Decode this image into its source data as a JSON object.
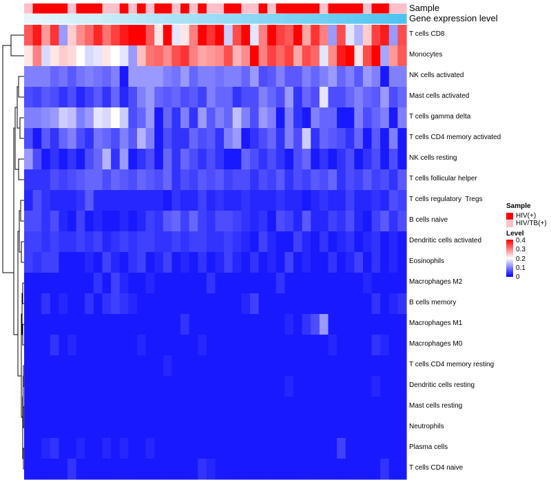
{
  "chart_data": {
    "type": "heatmap",
    "annotation_rows": [
      {
        "name": "Sample",
        "label": "Sample"
      },
      {
        "name": "Gene expression level",
        "label": "Gene expression level"
      }
    ],
    "sample_groups": [
      "L",
      "H",
      "H",
      "H",
      "H",
      "L",
      "H",
      "H",
      "H",
      "L",
      "L",
      "H",
      "L",
      "H",
      "L",
      "H",
      "H",
      "L",
      "H",
      "L",
      "H",
      "L",
      "L",
      "H",
      "H",
      "L",
      "L",
      "H",
      "L",
      "H",
      "H",
      "H",
      "H",
      "H",
      "L",
      "H",
      "H",
      "H",
      "H",
      "L",
      "H",
      "H",
      "L",
      "L"
    ],
    "expression_annotation": {
      "from_color": "#e8f6fb",
      "to_color": "#4fc3f0"
    },
    "rows": [
      "T cells CD8",
      "Monocytes",
      "NK cells activated",
      "Mast cells activated",
      "T cells gamma delta",
      "T cells CD4 memory activated",
      "NK cells resting",
      "T cells follicular helper",
      "T cells regulatory  Tregs",
      "B cells naive",
      "Dendritic cells activated",
      "Eosinophils",
      "Macrophages M2",
      "B cells memory",
      "Macrophages M1",
      "Macrophages M0",
      "T cells CD4 memory resting",
      "Dendritic cells resting",
      "Mast cells resting",
      "Neutrophils",
      "Plasma cells",
      "T cells CD4 naive"
    ],
    "row_levels": [
      [
        0.33,
        0.38,
        0.28,
        0.36,
        0.12,
        0.24,
        0.29,
        0.32,
        0.37,
        0.31,
        0.35,
        0.38,
        0.4,
        0.4,
        0.33,
        0.22,
        0.4,
        0.18,
        0.22,
        0.3,
        0.4,
        0.36,
        0.4,
        0.16,
        0.34,
        0.4,
        0.18,
        0.3,
        0.4,
        0.35,
        0.33,
        0.4,
        0.27,
        0.36,
        0.3,
        0.12,
        0.34,
        0.18,
        0.14,
        0.24,
        0.35,
        0.38,
        0.12,
        0.34
      ],
      [
        0.22,
        0.3,
        0.17,
        0.22,
        0.24,
        0.23,
        0.2,
        0.17,
        0.18,
        0.22,
        0.2,
        0.18,
        0.12,
        0.25,
        0.31,
        0.32,
        0.29,
        0.34,
        0.36,
        0.3,
        0.27,
        0.28,
        0.29,
        0.34,
        0.26,
        0.29,
        0.4,
        0.3,
        0.35,
        0.32,
        0.35,
        0.27,
        0.34,
        0.32,
        0.18,
        0.29,
        0.38,
        0.4,
        0.22,
        0.34,
        0.4,
        0.13,
        0.28,
        0.33
      ],
      [
        0.1,
        0.1,
        0.1,
        0.08,
        0.09,
        0.07,
        0.09,
        0.1,
        0.09,
        0.08,
        0.1,
        0.02,
        0.12,
        0.12,
        0.12,
        0.12,
        0.1,
        0.09,
        0.12,
        0.08,
        0.1,
        0.1,
        0.09,
        0.1,
        0.1,
        0.08,
        0.12,
        0.06,
        0.07,
        0.1,
        0.07,
        0.07,
        0.1,
        0.08,
        0.1,
        0.12,
        0.08,
        0.1,
        0.07,
        0.12,
        0.1,
        0.02,
        0.1,
        0.1
      ],
      [
        0.06,
        0.05,
        0.07,
        0.06,
        0.04,
        0.06,
        0.03,
        0.05,
        0.07,
        0.04,
        0.08,
        0.03,
        0.06,
        0.1,
        0.12,
        0.08,
        0.07,
        0.08,
        0.06,
        0.07,
        0.05,
        0.1,
        0.08,
        0.08,
        0.04,
        0.06,
        0.06,
        0.1,
        0.08,
        0.06,
        0.12,
        0.04,
        0.08,
        0.06,
        0.18,
        0.06,
        0.06,
        0.08,
        0.1,
        0.08,
        0.07,
        0.12,
        0.06,
        0.08
      ],
      [
        0.1,
        0.1,
        0.11,
        0.12,
        0.16,
        0.15,
        0.1,
        0.12,
        0.18,
        0.17,
        0.2,
        0.16,
        0.06,
        0.08,
        0.12,
        0.02,
        0.08,
        0.04,
        0.1,
        0.04,
        0.12,
        0.07,
        0.1,
        0.08,
        0.15,
        0.1,
        0.06,
        0.12,
        0.1,
        0.02,
        0.1,
        0.04,
        0.02,
        0.1,
        0.08,
        0.08,
        0.02,
        0.02,
        0.1,
        0.06,
        0.08,
        0.1,
        0.02,
        0.1
      ],
      [
        0.06,
        0.02,
        0.07,
        0.04,
        0.08,
        0.1,
        0.06,
        0.04,
        0.09,
        0.08,
        0.06,
        0.1,
        0.07,
        0.14,
        0.1,
        0.02,
        0.06,
        0.04,
        0.04,
        0.08,
        0.06,
        0.07,
        0.04,
        0.1,
        0.12,
        0.02,
        0.04,
        0.06,
        0.08,
        0.04,
        0.1,
        0.06,
        0.16,
        0.04,
        0.08,
        0.07,
        0.06,
        0.04,
        0.08,
        0.02,
        0.07,
        0.02,
        0.1,
        0.02
      ],
      [
        0.12,
        0.06,
        0.02,
        0.04,
        0.02,
        0.04,
        0.02,
        0.06,
        0.08,
        0.14,
        0.04,
        0.12,
        0.02,
        0.04,
        0.06,
        0.02,
        0.08,
        0.04,
        0.08,
        0.06,
        0.04,
        0.06,
        0.04,
        0.02,
        0.02,
        0.08,
        0.06,
        0.04,
        0.06,
        0.04,
        0.02,
        0.06,
        0.08,
        0.02,
        0.04,
        0.02,
        0.04,
        0.06,
        0.02,
        0.04,
        0.06,
        0.02,
        0.06,
        0.02
      ],
      [
        0.04,
        0.04,
        0.04,
        0.06,
        0.05,
        0.06,
        0.07,
        0.08,
        0.08,
        0.06,
        0.08,
        0.07,
        0.06,
        0.08,
        0.07,
        0.06,
        0.08,
        0.04,
        0.06,
        0.05,
        0.07,
        0.06,
        0.07,
        0.05,
        0.06,
        0.06,
        0.04,
        0.06,
        0.05,
        0.07,
        0.04,
        0.06,
        0.05,
        0.07,
        0.06,
        0.08,
        0.04,
        0.06,
        0.05,
        0.07,
        0.05,
        0.06,
        0.04,
        0.07
      ],
      [
        0.03,
        0.06,
        0.04,
        0.03,
        0.03,
        0.03,
        0.04,
        0.07,
        0.03,
        0.03,
        0.03,
        0.03,
        0.03,
        0.03,
        0.03,
        0.03,
        0.02,
        0.04,
        0.03,
        0.03,
        0.05,
        0.03,
        0.04,
        0.03,
        0.03,
        0.04,
        0.03,
        0.03,
        0.03,
        0.04,
        0.03,
        0.03,
        0.02,
        0.03,
        0.04,
        0.03,
        0.03,
        0.05,
        0.03,
        0.03,
        0.04,
        0.03,
        0.06,
        0.05
      ],
      [
        0.06,
        0.06,
        0.04,
        0.06,
        0.03,
        0.02,
        0.05,
        0.02,
        0.03,
        0.02,
        0.02,
        0.03,
        0.02,
        0.03,
        0.05,
        0.04,
        0.07,
        0.08,
        0.05,
        0.08,
        0.05,
        0.04,
        0.06,
        0.06,
        0.05,
        0.04,
        0.03,
        0.04,
        0.02,
        0.06,
        0.05,
        0.03,
        0.07,
        0.03,
        0.03,
        0.05,
        0.04,
        0.06,
        0.03,
        0.02,
        0.05,
        0.07,
        0.04,
        0.06
      ],
      [
        0.05,
        0.05,
        0.04,
        0.05,
        0.04,
        0.04,
        0.05,
        0.04,
        0.05,
        0.03,
        0.04,
        0.05,
        0.04,
        0.05,
        0.05,
        0.04,
        0.04,
        0.05,
        0.04,
        0.05,
        0.05,
        0.04,
        0.04,
        0.05,
        0.04,
        0.03,
        0.02,
        0.05,
        0.03,
        0.02,
        0.02,
        0.05,
        0.03,
        0.02,
        0.04,
        0.02,
        0.03,
        0.04,
        0.02,
        0.03,
        0.04,
        0.02,
        0.03,
        0.02
      ],
      [
        0.05,
        0.04,
        0.05,
        0.05,
        0.02,
        0.02,
        0.02,
        0.03,
        0.02,
        0.05,
        0.03,
        0.02,
        0.04,
        0.05,
        0.02,
        0.03,
        0.05,
        0.02,
        0.03,
        0.02,
        0.04,
        0.02,
        0.03,
        0.05,
        0.03,
        0.02,
        0.04,
        0.02,
        0.03,
        0.02,
        0.05,
        0.02,
        0.03,
        0.02,
        0.02,
        0.04,
        0.02,
        0.03,
        0.05,
        0.02,
        0.04,
        0.02,
        0.03,
        0.02
      ],
      [
        0.02,
        0.02,
        0.02,
        0.02,
        0.02,
        0.02,
        0.02,
        0.02,
        0.04,
        0.02,
        0.05,
        0.03,
        0.02,
        0.02,
        0.03,
        0.02,
        0.02,
        0.02,
        0.02,
        0.02,
        0.02,
        0.04,
        0.02,
        0.02,
        0.02,
        0.02,
        0.02,
        0.02,
        0.02,
        0.04,
        0.02,
        0.02,
        0.02,
        0.02,
        0.02,
        0.02,
        0.02,
        0.02,
        0.02,
        0.03,
        0.02,
        0.02,
        0.02,
        0.02
      ],
      [
        0.02,
        0.02,
        0.04,
        0.02,
        0.03,
        0.02,
        0.02,
        0.04,
        0.02,
        0.04,
        0.05,
        0.04,
        0.03,
        0.02,
        0.02,
        0.02,
        0.02,
        0.02,
        0.02,
        0.02,
        0.02,
        0.02,
        0.02,
        0.02,
        0.02,
        0.03,
        0.05,
        0.02,
        0.02,
        0.02,
        0.02,
        0.02,
        0.02,
        0.02,
        0.02,
        0.02,
        0.02,
        0.02,
        0.02,
        0.02,
        0.04,
        0.02,
        0.03,
        0.04
      ],
      [
        0.02,
        0.02,
        0.02,
        0.02,
        0.02,
        0.02,
        0.02,
        0.02,
        0.02,
        0.02,
        0.02,
        0.02,
        0.02,
        0.02,
        0.02,
        0.02,
        0.02,
        0.02,
        0.04,
        0.02,
        0.02,
        0.02,
        0.02,
        0.02,
        0.02,
        0.02,
        0.02,
        0.02,
        0.02,
        0.02,
        0.03,
        0.02,
        0.04,
        0.06,
        0.12,
        0.02,
        0.02,
        0.02,
        0.02,
        0.02,
        0.02,
        0.02,
        0.02,
        0.02
      ],
      [
        0.02,
        0.02,
        0.02,
        0.04,
        0.02,
        0.03,
        0.02,
        0.02,
        0.02,
        0.02,
        0.02,
        0.02,
        0.02,
        0.03,
        0.02,
        0.02,
        0.02,
        0.02,
        0.02,
        0.02,
        0.03,
        0.02,
        0.02,
        0.02,
        0.02,
        0.02,
        0.02,
        0.02,
        0.02,
        0.02,
        0.02,
        0.02,
        0.02,
        0.02,
        0.02,
        0.03,
        0.02,
        0.02,
        0.02,
        0.02,
        0.04,
        0.03,
        0.02,
        0.02
      ],
      [
        0.02,
        0.02,
        0.02,
        0.02,
        0.02,
        0.02,
        0.02,
        0.02,
        0.02,
        0.02,
        0.02,
        0.02,
        0.02,
        0.02,
        0.02,
        0.02,
        0.03,
        0.02,
        0.02,
        0.02,
        0.02,
        0.02,
        0.02,
        0.02,
        0.02,
        0.02,
        0.02,
        0.02,
        0.02,
        0.02,
        0.02,
        0.02,
        0.02,
        0.02,
        0.02,
        0.02,
        0.02,
        0.02,
        0.02,
        0.02,
        0.02,
        0.02,
        0.02,
        0.02
      ],
      [
        0.02,
        0.02,
        0.02,
        0.02,
        0.02,
        0.02,
        0.02,
        0.02,
        0.02,
        0.02,
        0.02,
        0.02,
        0.02,
        0.02,
        0.02,
        0.02,
        0.02,
        0.02,
        0.02,
        0.02,
        0.02,
        0.02,
        0.02,
        0.02,
        0.02,
        0.02,
        0.02,
        0.02,
        0.02,
        0.02,
        0.03,
        0.02,
        0.02,
        0.02,
        0.02,
        0.02,
        0.02,
        0.02,
        0.02,
        0.02,
        0.03,
        0.02,
        0.02,
        0.02
      ],
      [
        0.02,
        0.02,
        0.02,
        0.02,
        0.02,
        0.02,
        0.02,
        0.02,
        0.02,
        0.02,
        0.02,
        0.02,
        0.02,
        0.02,
        0.02,
        0.02,
        0.02,
        0.02,
        0.02,
        0.02,
        0.02,
        0.02,
        0.02,
        0.02,
        0.02,
        0.02,
        0.02,
        0.02,
        0.02,
        0.02,
        0.02,
        0.02,
        0.02,
        0.02,
        0.02,
        0.02,
        0.02,
        0.02,
        0.02,
        0.02,
        0.02,
        0.02,
        0.02,
        0.02
      ],
      [
        0.02,
        0.02,
        0.02,
        0.02,
        0.02,
        0.02,
        0.02,
        0.02,
        0.02,
        0.02,
        0.02,
        0.02,
        0.02,
        0.02,
        0.02,
        0.02,
        0.02,
        0.02,
        0.02,
        0.02,
        0.02,
        0.02,
        0.02,
        0.02,
        0.02,
        0.02,
        0.02,
        0.02,
        0.02,
        0.02,
        0.02,
        0.02,
        0.02,
        0.02,
        0.02,
        0.02,
        0.02,
        0.02,
        0.02,
        0.02,
        0.02,
        0.02,
        0.02,
        0.02
      ],
      [
        0.02,
        0.02,
        0.03,
        0.04,
        0.02,
        0.02,
        0.03,
        0.02,
        0.02,
        0.03,
        0.02,
        0.03,
        0.02,
        0.02,
        0.03,
        0.02,
        0.02,
        0.02,
        0.02,
        0.02,
        0.02,
        0.02,
        0.02,
        0.02,
        0.02,
        0.02,
        0.02,
        0.02,
        0.02,
        0.02,
        0.02,
        0.02,
        0.02,
        0.02,
        0.02,
        0.02,
        0.05,
        0.02,
        0.02,
        0.02,
        0.02,
        0.02,
        0.02,
        0.02
      ],
      [
        0.02,
        0.02,
        0.02,
        0.02,
        0.02,
        0.04,
        0.02,
        0.02,
        0.02,
        0.02,
        0.02,
        0.02,
        0.02,
        0.02,
        0.02,
        0.02,
        0.02,
        0.02,
        0.02,
        0.02,
        0.04,
        0.03,
        0.02,
        0.02,
        0.02,
        0.02,
        0.02,
        0.02,
        0.02,
        0.02,
        0.02,
        0.02,
        0.02,
        0.02,
        0.02,
        0.02,
        0.02,
        0.02,
        0.02,
        0.02,
        0.02,
        0.04,
        0.02,
        0.02
      ]
    ],
    "color_scale": {
      "min": 0,
      "mid": 0.2,
      "max": 0.4,
      "low_color": "#0000ff",
      "mid_color": "#ffffff",
      "high_color": "#ff0000"
    },
    "legends": {
      "sample": {
        "title": "Sample",
        "items": [
          {
            "key": "H",
            "label": "HIV(+)",
            "color": "#ff0000"
          },
          {
            "key": "L",
            "label": "HIV/TB(+)",
            "color": "#ffc0cb"
          }
        ]
      },
      "level": {
        "title": "Level",
        "ticks": [
          "0.4",
          "0.3",
          "0.2",
          "0.1",
          "0"
        ]
      }
    }
  }
}
